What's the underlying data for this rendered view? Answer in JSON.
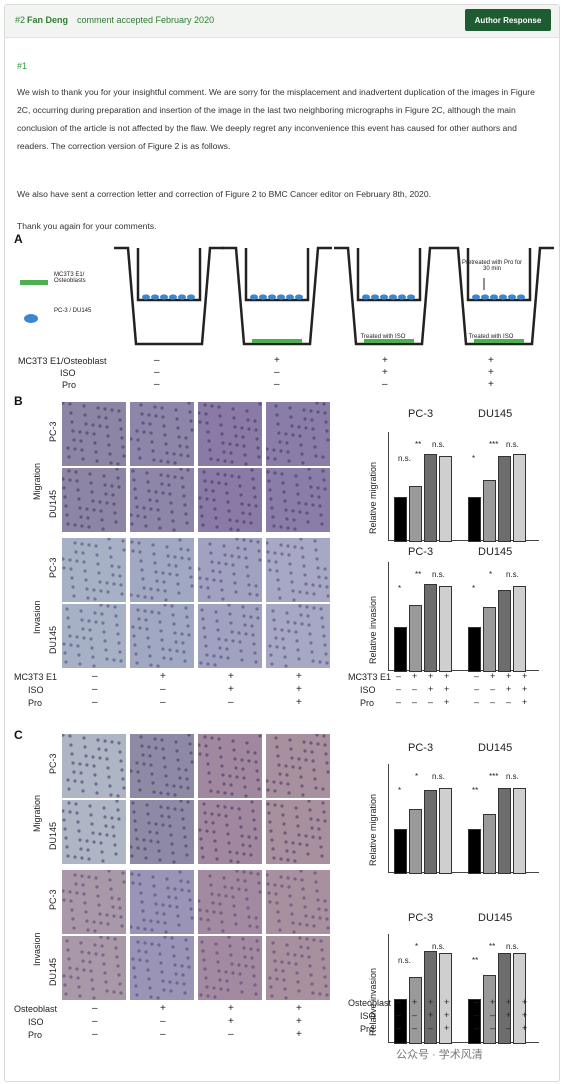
{
  "header": {
    "comment_number": "#2",
    "author": "Fan Deng",
    "status": "comment accepted February 2020",
    "response_button": "Author Response"
  },
  "body": {
    "anchor": "#1",
    "paragraphs": [
      "We wish to thank you for your insightful comment. We are sorry for the misplacement and inadvertent duplication of the images in Figure 2C, occurring during preparation and insertion of the image in the last two neighboring micrographs in Figure 2C, although the main conclusion of the article is not affected by the flaw. We deeply regret any inconvenience this event has caused for other authors and readers. The correction version of Figure 2 is as follows.",
      "We also have sent a correction letter and correction of Figure 2 to BMC Cancer editor on February 8th, 2020.",
      "Thank you again for your comments."
    ]
  },
  "figure": {
    "panel_a": {
      "label": "A",
      "legend": [
        {
          "text": "MC3T3 E1/ Osteoblasts",
          "color": "#4caf50"
        },
        {
          "text": "PC-3 / DU145",
          "color": "#3a86d1"
        }
      ],
      "well_notes": {
        "treated_iso": "Treated with ISO",
        "pretreated": "Pretreated with Pro for 30 min"
      },
      "rows": [
        {
          "label": "MC3T3 E1/Osteoblast",
          "signs": [
            "–",
            "+",
            "+",
            "+"
          ]
        },
        {
          "label": "ISO",
          "signs": [
            "–",
            "–",
            "+",
            "+"
          ]
        },
        {
          "label": "Pro",
          "signs": [
            "–",
            "–",
            "–",
            "+"
          ]
        }
      ]
    },
    "panel_b": {
      "label": "B",
      "sections": [
        "Migration",
        "Invasion"
      ],
      "cells": [
        "PC-3",
        "DU145",
        "PC-3",
        "DU145"
      ],
      "rows": [
        {
          "label": "MC3T3 E1",
          "signs": [
            "–",
            "+",
            "+",
            "+"
          ]
        },
        {
          "label": "ISO",
          "signs": [
            "–",
            "–",
            "+",
            "+"
          ]
        },
        {
          "label": "Pro",
          "signs": [
            "–",
            "–",
            "–",
            "+"
          ]
        }
      ],
      "bar_rows": [
        {
          "label": "MC3T3 E1",
          "signs": [
            "–",
            "+",
            "+",
            "+",
            "–",
            "+",
            "+",
            "+"
          ]
        },
        {
          "label": "ISO",
          "signs": [
            "–",
            "–",
            "+",
            "+",
            "–",
            "–",
            "+",
            "+"
          ]
        },
        {
          "label": "Pro",
          "signs": [
            "–",
            "–",
            "–",
            "+",
            "–",
            "–",
            "–",
            "+"
          ]
        }
      ]
    },
    "panel_c": {
      "label": "C",
      "sections": [
        "Migration",
        "Invasion"
      ],
      "cells": [
        "PC-3",
        "DU145",
        "PC-3",
        "DU145"
      ],
      "rows": [
        {
          "label": "Osteoblast",
          "signs": [
            "–",
            "+",
            "+",
            "+"
          ]
        },
        {
          "label": "ISO",
          "signs": [
            "–",
            "–",
            "+",
            "+"
          ]
        },
        {
          "label": "Pro",
          "signs": [
            "–",
            "–",
            "–",
            "+"
          ]
        }
      ],
      "bar_rows": [
        {
          "label": "Osteoblast",
          "signs": [
            "–",
            "+",
            "+",
            "+",
            "–",
            "+",
            "+",
            "+"
          ]
        },
        {
          "label": "ISO",
          "signs": [
            "–",
            "–",
            "+",
            "+",
            "–",
            "–",
            "+",
            "+"
          ]
        },
        {
          "label": "Pro",
          "signs": [
            "–",
            "–",
            "–",
            "+",
            "–",
            "–",
            "–",
            "+"
          ]
        }
      ]
    }
  },
  "chart_data": [
    {
      "type": "bar",
      "panel": "B",
      "ylabel": "Relative migration",
      "groups": [
        "PC-3",
        "DU145"
      ],
      "ylim": [
        0,
        2.5
      ],
      "values": [
        [
          1.0,
          1.25,
          2.0,
          1.95
        ],
        [
          1.0,
          1.4,
          1.95,
          2.0
        ]
      ],
      "colors": [
        "#000000",
        "#9a9a9a",
        "#6d6d6d",
        "#cfcfcf"
      ],
      "sig": [
        [
          "n.s.",
          "**",
          "n.s."
        ],
        [
          "*",
          "***",
          "n.s."
        ]
      ]
    },
    {
      "type": "bar",
      "panel": "B",
      "ylabel": "Relative invasion",
      "groups": [
        "PC-3",
        "DU145"
      ],
      "ylim": [
        0,
        2.5
      ],
      "values": [
        [
          1.0,
          1.5,
          2.0,
          1.95
        ],
        [
          1.0,
          1.45,
          1.85,
          1.95
        ]
      ],
      "colors": [
        "#000000",
        "#9a9a9a",
        "#6d6d6d",
        "#cfcfcf"
      ],
      "sig": [
        [
          "*",
          "**",
          "n.s."
        ],
        [
          "*",
          "*",
          "n.s."
        ]
      ]
    },
    {
      "type": "bar",
      "panel": "C",
      "ylabel": "Relative migration",
      "groups": [
        "PC-3",
        "DU145"
      ],
      "ylim": [
        0,
        2.5
      ],
      "values": [
        [
          1.0,
          1.45,
          1.9,
          1.95
        ],
        [
          1.0,
          1.35,
          1.95,
          1.95
        ]
      ],
      "colors": [
        "#000000",
        "#9a9a9a",
        "#6d6d6d",
        "#cfcfcf"
      ],
      "sig": [
        [
          "*",
          "*",
          "n.s."
        ],
        [
          "**",
          "***",
          "n.s."
        ]
      ]
    },
    {
      "type": "bar",
      "panel": "C",
      "ylabel": "Relative invasion",
      "groups": [
        "PC-3",
        "DU145"
      ],
      "ylim": [
        0,
        2.5
      ],
      "values": [
        [
          1.0,
          1.5,
          2.1,
          2.05
        ],
        [
          1.0,
          1.55,
          2.05,
          2.05
        ]
      ],
      "colors": [
        "#000000",
        "#9a9a9a",
        "#6d6d6d",
        "#cfcfcf"
      ],
      "sig": [
        [
          "n.s.",
          "*",
          "n.s."
        ],
        [
          "**",
          "**",
          "n.s."
        ]
      ]
    }
  ],
  "watermark": "公众号 · 学术风清"
}
